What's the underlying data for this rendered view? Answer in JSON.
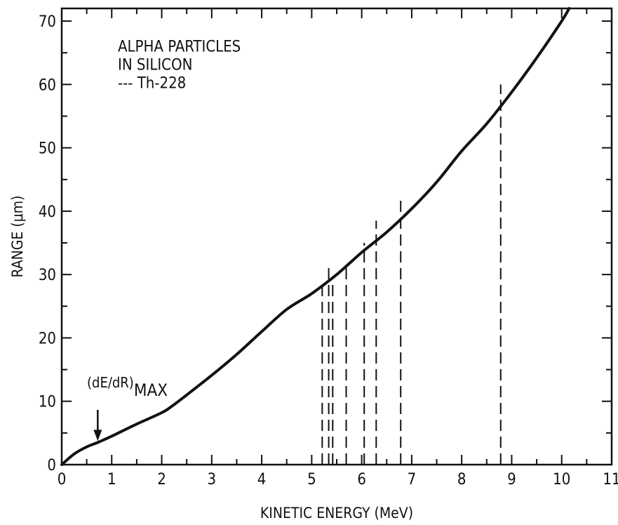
{
  "chart_data": {
    "type": "line",
    "xlabel": "KINETIC ENERGY (MeV)",
    "ylabel": "RANGE (μm)",
    "xlim": [
      0,
      11
    ],
    "ylim": [
      0,
      72
    ],
    "x_ticks": [
      "0",
      "1",
      "2",
      "3",
      "4",
      "5",
      "6",
      "7",
      "8",
      "9",
      "10",
      "11"
    ],
    "y_ticks": [
      "0",
      "10",
      "20",
      "30",
      "40",
      "50",
      "60",
      "70"
    ],
    "grid": false,
    "legend_lines": [
      "ALPHA PARTICLES",
      "IN SILICON",
      "--- Th-228"
    ],
    "legend_position": "top-left",
    "series": [
      {
        "x": [
          0,
          0.25,
          0.5,
          0.75,
          1,
          1.5,
          2,
          2.2,
          2.5,
          3,
          3.5,
          4,
          4.5,
          5,
          5.5,
          6,
          6.5,
          7,
          7.5,
          8,
          8.5,
          9,
          9.5,
          10,
          10.15
        ],
        "y": [
          0,
          1.7,
          2.8,
          3.6,
          4.5,
          6.4,
          8.2,
          9.2,
          11.0,
          14.1,
          17.4,
          21.0,
          24.5,
          27.0,
          30.0,
          33.5,
          36.7,
          40.4,
          44.6,
          49.5,
          53.8,
          58.8,
          64.2,
          70.0,
          72.0
        ]
      }
    ],
    "th228_lines": [
      {
        "energy": 5.21,
        "top": 28.0
      },
      {
        "energy": 5.34,
        "top": 31.5
      },
      {
        "energy": 5.42,
        "top": 29.5
      },
      {
        "energy": 5.69,
        "top": 31.5
      },
      {
        "energy": 6.05,
        "top": 35.0
      },
      {
        "energy": 6.29,
        "top": 38.5
      },
      {
        "energy": 6.78,
        "top": 42.0
      },
      {
        "energy": 8.78,
        "top": 60.0
      }
    ],
    "annotation": {
      "base": "(dE/dR)",
      "subscript": "MAX",
      "energy": 0.72,
      "range": 3.5
    }
  }
}
